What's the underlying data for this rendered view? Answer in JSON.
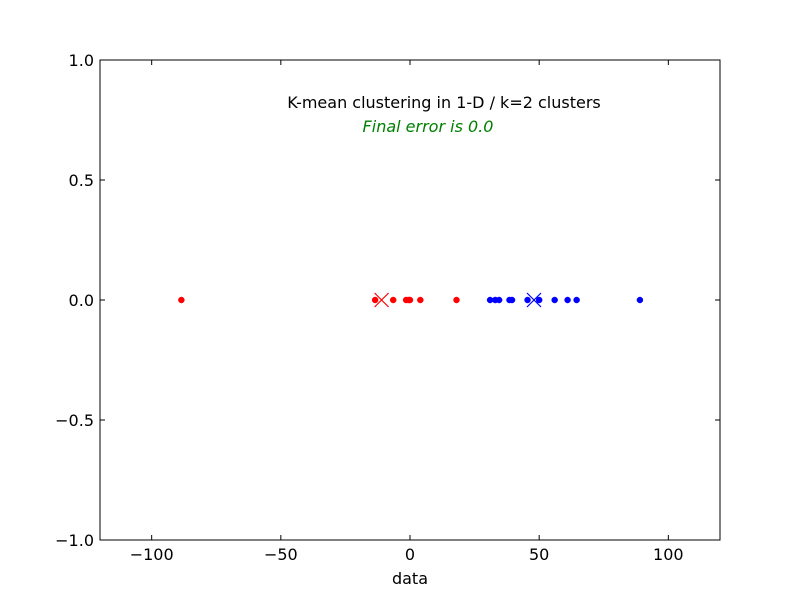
{
  "chart_data": {
    "type": "scatter",
    "title": "K-mean clustering in 1-D / k=2 clusters",
    "subtitle": "Final error is 0.0",
    "xlabel": "data",
    "ylabel": "",
    "xlim": [
      -120,
      120
    ],
    "ylim": [
      -1.0,
      1.0
    ],
    "x_ticks": [
      -100,
      -50,
      0,
      50,
      100
    ],
    "x_tick_labels": [
      "−100",
      "−50",
      "0",
      "50",
      "100"
    ],
    "y_ticks": [
      1.0,
      0.5,
      0.0,
      -0.5,
      -1.0
    ],
    "y_tick_labels": [
      "1.0",
      "0.5",
      "0.0",
      "−0.5",
      "−1.0"
    ],
    "grid": false,
    "series": [
      {
        "color": "#ff0000",
        "x": [
          -88.5,
          -13.5,
          -6.5,
          -1.5,
          -0.5,
          0.0,
          4.0,
          18.0
        ],
        "y": [
          0,
          0,
          0,
          0,
          0,
          0,
          0,
          0
        ]
      },
      {
        "color": "#0000ff",
        "x": [
          31.0,
          33.0,
          34.5,
          38.5,
          39.5,
          45.5,
          50.0,
          56.0,
          61.0,
          64.5,
          89.0
        ],
        "y": [
          0,
          0,
          0,
          0,
          0,
          0,
          0,
          0,
          0,
          0,
          0
        ]
      }
    ],
    "centroids": [
      {
        "x": -11.0,
        "y": 0,
        "color": "#ff0000",
        "marker": "x"
      },
      {
        "x": 48.0,
        "y": 0,
        "color": "#0000ff",
        "marker": "x"
      }
    ],
    "colors": {
      "subtitle": "#008000",
      "axes": "#000000"
    }
  }
}
